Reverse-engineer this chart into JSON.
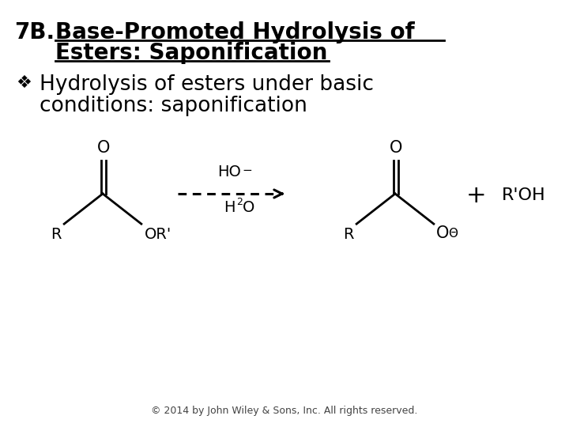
{
  "background_color": "#ffffff",
  "title_prefix": "7B.",
  "title_line1": "Base-Promoted Hydrolysis of",
  "title_line2": "Esters: Saponification",
  "bullet_line1": "Hydrolysis of esters under basic",
  "bullet_line2": "conditions: saponification",
  "copyright": "© 2014 by John Wiley & Sons, Inc. All rights reserved.",
  "title_fontsize": 20,
  "bullet_fontsize": 19,
  "chem_fontsize": 15,
  "chem_label_fontsize": 14,
  "copyright_fontsize": 9
}
